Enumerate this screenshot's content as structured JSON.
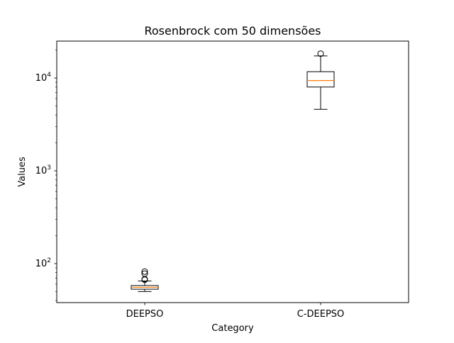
{
  "chart_data": {
    "type": "box",
    "title": "Rosenbrock com 50 dimensões",
    "xlabel": "Category",
    "ylabel": "Values",
    "yscale": "log",
    "ylim": [
      38,
      25000
    ],
    "yticks": [
      {
        "value": 100,
        "base": "10",
        "exp": "2"
      },
      {
        "value": 1000,
        "base": "10",
        "exp": "3"
      },
      {
        "value": 10000,
        "base": "10",
        "exp": "4"
      }
    ],
    "categories": [
      "DEEPSO",
      "C-DEEPSO"
    ],
    "boxes": [
      {
        "category": "DEEPSO",
        "whisker_low": 50,
        "q1": 53,
        "median": 55.5,
        "q3": 58,
        "whisker_high": 65,
        "outliers": [
          67,
          68,
          78,
          82
        ]
      },
      {
        "category": "C-DEEPSO",
        "whisker_low": 4600,
        "q1": 8000,
        "median": 9400,
        "q3": 11700,
        "whisker_high": 17300,
        "outliers": [
          18300
        ]
      }
    ],
    "colors": {
      "median": "#ff7f0e",
      "box": "#000000",
      "axes": "#000000"
    },
    "grid": false,
    "legend": "none"
  }
}
